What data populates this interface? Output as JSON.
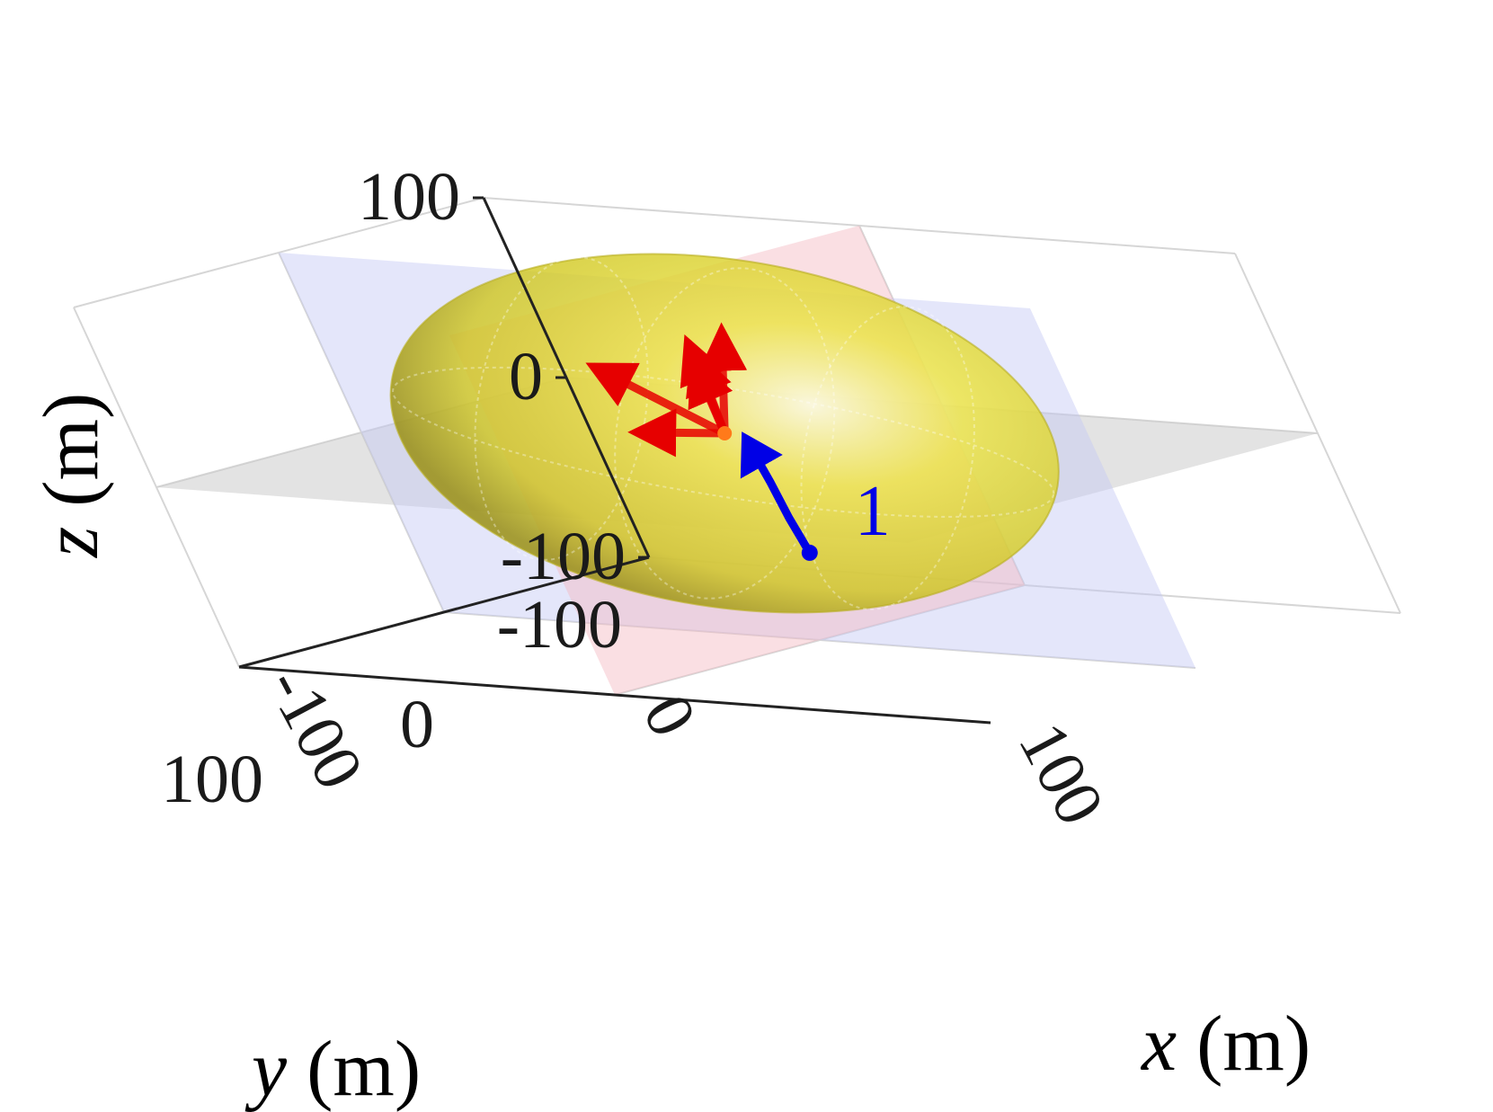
{
  "chart_data": {
    "type": "3d-scatter",
    "title": "",
    "axes": {
      "x": {
        "label_var": "x",
        "label_unit": " (m)",
        "ticks": [
          "100",
          "0",
          "-100"
        ],
        "range": [
          -100,
          100
        ]
      },
      "y": {
        "label_var": "y",
        "label_unit": " (m)",
        "ticks": [
          "-100",
          "0",
          "100"
        ],
        "range": [
          -100,
          100
        ]
      },
      "z": {
        "label_var": "z",
        "label_unit": " (m)",
        "ticks": [
          "-100",
          "0",
          "100"
        ],
        "range": [
          -100,
          100
        ]
      }
    },
    "grid": true,
    "surfaces": [
      {
        "name": "ellipsoid-region",
        "color": "#e6e22e",
        "opacity": 0.75,
        "center": [
          0,
          0,
          15
        ],
        "semi_axes": [
          40,
          90,
          45
        ]
      },
      {
        "name": "plane-z0",
        "color": "#c8c8c8",
        "opacity": 0.5,
        "z": 0
      },
      {
        "name": "plane-x0",
        "color": "#f4b7c2",
        "opacity": 0.45,
        "x": 0
      },
      {
        "name": "plane-y0",
        "color": "#c4c8f4",
        "opacity": 0.45,
        "y": 0
      }
    ],
    "red_vectors": {
      "color": "#e60000",
      "origin": [
        0,
        0,
        15
      ],
      "tips": [
        [
          -10,
          -35,
          60
        ],
        [
          -5,
          -10,
          62
        ],
        [
          5,
          5,
          62
        ],
        [
          10,
          15,
          60
        ],
        [
          -12,
          25,
          58
        ],
        [
          20,
          70,
          40
        ]
      ]
    },
    "blue_trajectory": {
      "color": "#0000e6",
      "label": "1",
      "points": [
        [
          40,
          50,
          -30
        ],
        [
          40,
          52,
          -10
        ],
        [
          40,
          53,
          10
        ],
        [
          40,
          55,
          35
        ]
      ]
    }
  }
}
